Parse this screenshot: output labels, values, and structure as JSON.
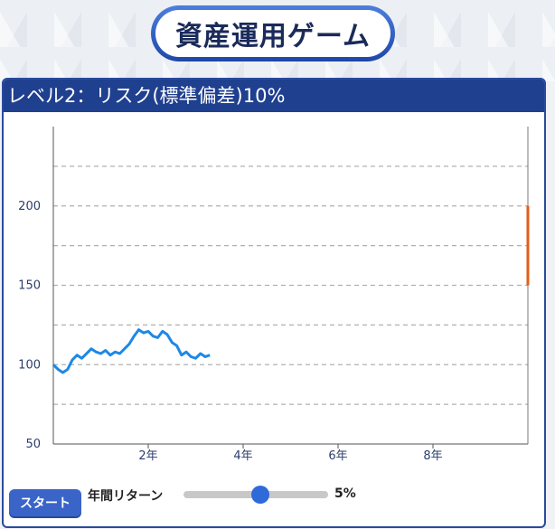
{
  "game": {
    "title": "資産運用ゲーム",
    "level_header": "レベル2：リスク(標準偏差)10%"
  },
  "controls": {
    "start_label": "スタート",
    "return_label": "年間リターン",
    "return_value": "5%",
    "return_slider_fraction": 0.53
  },
  "colors": {
    "accent": "#1f3f8f",
    "series": "#1e88e5",
    "target_bar": "#e65c1a"
  },
  "chart_data": {
    "type": "line",
    "xlim": [
      0,
      10
    ],
    "ylim": [
      50,
      250
    ],
    "y_ticks": [
      50,
      100,
      150,
      200
    ],
    "x_ticks": [
      {
        "value": 2,
        "label": "2年"
      },
      {
        "value": 4,
        "label": "4年"
      },
      {
        "value": 6,
        "label": "6年"
      },
      {
        "value": 8,
        "label": "8年"
      }
    ],
    "gridlines_y": [
      75,
      100,
      125,
      150,
      175,
      200,
      225
    ],
    "target_range": [
      150,
      200
    ],
    "series": [
      {
        "x": [
          0.0,
          0.1,
          0.2,
          0.3,
          0.4,
          0.5,
          0.6,
          0.7,
          0.8,
          0.9,
          1.0,
          1.1,
          1.2,
          1.3,
          1.4,
          1.5,
          1.6,
          1.7,
          1.8,
          1.9,
          2.0,
          2.1,
          2.2,
          2.3,
          2.4,
          2.5,
          2.6,
          2.7,
          2.8,
          2.9,
          3.0,
          3.1,
          3.2,
          3.3
        ],
        "y": [
          100,
          97,
          95,
          97,
          103,
          106,
          104,
          107,
          110,
          108,
          107,
          109,
          106,
          108,
          107,
          110,
          113,
          118,
          122,
          120,
          121,
          118,
          117,
          121,
          119,
          114,
          112,
          106,
          108,
          105,
          104,
          107,
          105,
          106
        ]
      }
    ]
  }
}
